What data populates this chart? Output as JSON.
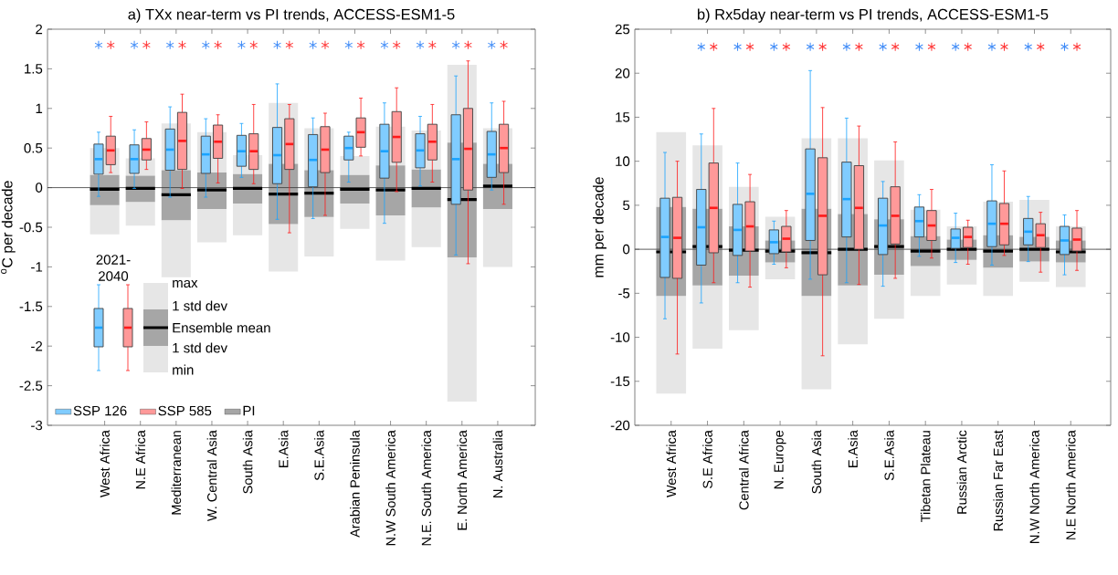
{
  "chart_data": [
    {
      "type": "box",
      "title": "a) TXx near-term vs PI trends, ACCESS-ESM1-5",
      "ylabel": "$^{o}$C per decade",
      "categories": [
        "West Africa",
        "N.E Africa",
        "Mediterranean",
        "W. Central Asia",
        "South Asia",
        "E.Asia",
        "S.E.Asia",
        "Arabian Peninsula",
        "N.W South America",
        "N.E. South America",
        "E. North America",
        "N. Australia"
      ],
      "ylim": [
        -3,
        2
      ],
      "yticks": [
        -3,
        -2.5,
        -2,
        -1.5,
        -1,
        -0.5,
        0,
        0.5,
        1,
        1.5,
        2
      ],
      "legend": "bottom left",
      "ref_lines": [
        {
          "axis": "y",
          "value": 0
        }
      ],
      "annotations": [
        "max",
        "1 std dev",
        "Ensemble mean",
        "1 std dev",
        "min",
        "2021-2040"
      ],
      "series": [
        {
          "name": "PI",
          "color": "#a6a6a6",
          "boxes": [
            {
              "low": -0.59,
              "q1": -0.22,
              "median": -0.02,
              "q3": 0.16,
              "high": 0.5
            },
            {
              "low": -0.48,
              "q1": -0.18,
              "median": -0.01,
              "q3": 0.15,
              "high": 0.37
            },
            {
              "low": -1.13,
              "q1": -0.41,
              "median": -0.09,
              "q3": 0.22,
              "high": 0.81
            },
            {
              "low": -0.69,
              "q1": -0.27,
              "median": -0.03,
              "q3": 0.19,
              "high": 0.7
            },
            {
              "low": -0.6,
              "q1": -0.2,
              "median": -0.01,
              "q3": 0.17,
              "high": 0.41
            },
            {
              "low": -1.06,
              "q1": -0.46,
              "median": -0.08,
              "q3": 0.3,
              "high": 1.07
            },
            {
              "low": -0.87,
              "q1": -0.37,
              "median": -0.07,
              "q3": 0.22,
              "high": 0.75
            },
            {
              "low": -0.52,
              "q1": -0.2,
              "median": -0.02,
              "q3": 0.16,
              "high": 0.4
            },
            {
              "low": -0.92,
              "q1": -0.35,
              "median": -0.03,
              "q3": 0.28,
              "high": 0.77
            },
            {
              "low": -0.75,
              "q1": -0.25,
              "median": -0.01,
              "q3": 0.23,
              "high": 0.72
            },
            {
              "low": -2.7,
              "q1": -0.88,
              "median": -0.15,
              "q3": 0.57,
              "high": 1.55
            },
            {
              "low": -1.0,
              "q1": -0.27,
              "median": 0.02,
              "q3": 0.3,
              "high": 0.75
            }
          ]
        },
        {
          "name": "SSP 126",
          "color": "#80ccff",
          "boxes": [
            {
              "low": -0.11,
              "q1": 0.17,
              "median": 0.36,
              "q3": 0.55,
              "high": 0.7
            },
            {
              "low": -0.01,
              "q1": 0.18,
              "median": 0.36,
              "q3": 0.54,
              "high": 0.73
            },
            {
              "low": -0.12,
              "q1": 0.22,
              "median": 0.48,
              "q3": 0.74,
              "high": 1.02
            },
            {
              "low": -0.12,
              "q1": 0.18,
              "median": 0.42,
              "q3": 0.65,
              "high": 0.87
            },
            {
              "low": 0.13,
              "q1": 0.27,
              "median": 0.46,
              "q3": 0.66,
              "high": 0.81
            },
            {
              "low": -0.4,
              "q1": 0.05,
              "median": 0.41,
              "q3": 0.76,
              "high": 1.31
            },
            {
              "low": -0.39,
              "q1": 0.01,
              "median": 0.35,
              "q3": 0.67,
              "high": 0.88
            },
            {
              "low": 0.07,
              "q1": 0.35,
              "median": 0.5,
              "q3": 0.65,
              "high": 0.7
            },
            {
              "low": -0.45,
              "q1": 0.12,
              "median": 0.46,
              "q3": 0.8,
              "high": 1.07
            },
            {
              "low": 0.02,
              "q1": 0.25,
              "median": 0.47,
              "q3": 0.68,
              "high": 0.9
            },
            {
              "low": -0.85,
              "q1": -0.21,
              "median": 0.36,
              "q3": 0.92,
              "high": 1.41
            },
            {
              "low": -0.03,
              "q1": 0.13,
              "median": 0.42,
              "q3": 0.71,
              "high": 1.07
            }
          ]
        },
        {
          "name": "SSP 585",
          "color": "#ff9999",
          "boxes": [
            {
              "low": 0.19,
              "q1": 0.29,
              "median": 0.47,
              "q3": 0.65,
              "high": 0.9
            },
            {
              "low": 0.23,
              "q1": 0.35,
              "median": 0.48,
              "q3": 0.62,
              "high": 0.83
            },
            {
              "low": -0.01,
              "q1": 0.23,
              "median": 0.59,
              "q3": 0.95,
              "high": 1.18
            },
            {
              "low": 0.06,
              "q1": 0.37,
              "median": 0.58,
              "q3": 0.79,
              "high": 0.92
            },
            {
              "low": 0.05,
              "q1": 0.23,
              "median": 0.46,
              "q3": 0.68,
              "high": 1.05
            },
            {
              "low": -0.57,
              "q1": 0.23,
              "median": 0.55,
              "q3": 0.87,
              "high": 1.05
            },
            {
              "low": -0.35,
              "q1": 0.19,
              "median": 0.48,
              "q3": 0.77,
              "high": 0.94
            },
            {
              "low": 0.4,
              "q1": 0.51,
              "median": 0.7,
              "q3": 0.88,
              "high": 1.13
            },
            {
              "low": -0.05,
              "q1": 0.32,
              "median": 0.64,
              "q3": 0.96,
              "high": 1.26
            },
            {
              "low": 0.07,
              "q1": 0.35,
              "median": 0.58,
              "q3": 0.8,
              "high": 1.05
            },
            {
              "low": -0.96,
              "q1": -0.03,
              "median": 0.49,
              "q3": 1.0,
              "high": 1.6
            },
            {
              "low": -0.21,
              "q1": 0.19,
              "median": 0.5,
              "q3": 0.8,
              "high": 1.09
            }
          ]
        },
        {
          "type": "scatter",
          "color": "#3d8af7",
          "marker": "cross",
          "values": [
            1.8,
            1.8,
            1.8,
            1.8,
            1.8,
            1.8,
            1.8,
            1.8,
            1.8,
            1.8,
            1.8,
            1.8
          ]
        },
        {
          "type": "scatter",
          "color": "#ff3333",
          "marker": "cross",
          "values": [
            1.8,
            1.8,
            1.8,
            1.8,
            1.8,
            1.8,
            1.8,
            1.8,
            1.8,
            1.8,
            1.8,
            1.8
          ]
        }
      ]
    },
    {
      "type": "box",
      "title": "b) Rx5day near-term vs PI trends, ACCESS-ESM1-5",
      "ylabel": "mm per decade",
      "categories": [
        "West Africa",
        "S.E Africa",
        "Central Africa",
        "N. Europe",
        "South Asia",
        "E.Asia",
        "S.E.Asia",
        "Tibetan Plateau",
        "Russian Arctic",
        "Russian Far East",
        "N.W North America",
        "N.E North America"
      ],
      "ylim": [
        -20,
        25
      ],
      "yticks": [
        -20,
        -15,
        -10,
        -5,
        0,
        5,
        10,
        15,
        20,
        25
      ],
      "ref_lines": [
        {
          "axis": "y",
          "value": 0
        }
      ],
      "series": [
        {
          "color": "#a6a6a6",
          "boxes": [
            {
              "low": -16.4,
              "q1": -5.3,
              "median": -0.3,
              "q3": 4.8,
              "high": 13.3
            },
            {
              "low": -11.3,
              "q1": -4.1,
              "median": 0.3,
              "q3": 4.6,
              "high": 11.8
            },
            {
              "low": -9.2,
              "q1": -3.0,
              "median": -0.1,
              "q3": 2.6,
              "high": 7.1
            },
            {
              "low": -3.4,
              "q1": -1.5,
              "median": -0.2,
              "q3": 1.0,
              "high": 3.7
            },
            {
              "low": -15.9,
              "q1": -5.3,
              "median": -0.4,
              "q3": 4.6,
              "high": 12.6
            },
            {
              "low": -10.8,
              "q1": -4.1,
              "median": 0.0,
              "q3": 4.0,
              "high": 12.6
            },
            {
              "low": -7.9,
              "q1": -2.9,
              "median": 0.3,
              "q3": 3.4,
              "high": 10.1
            },
            {
              "low": -5.3,
              "q1": -1.9,
              "median": -0.2,
              "q3": 1.5,
              "high": 4.5
            },
            {
              "low": -4.0,
              "q1": -1.2,
              "median": 0.0,
              "q3": 1.1,
              "high": 2.6
            },
            {
              "low": -5.3,
              "q1": -2.1,
              "median": -0.2,
              "q3": 1.6,
              "high": 5.4
            },
            {
              "low": -3.7,
              "q1": -1.4,
              "median": 0.0,
              "q3": 1.4,
              "high": 5.6
            },
            {
              "low": -4.3,
              "q1": -1.5,
              "median": -0.3,
              "q3": 1.0,
              "high": 2.6
            }
          ]
        },
        {
          "color": "#80ccff",
          "boxes": [
            {
              "low": -7.9,
              "q1": -3.2,
              "median": 1.4,
              "q3": 5.8,
              "high": 11.0
            },
            {
              "low": -6.1,
              "q1": -1.8,
              "median": 2.5,
              "q3": 6.8,
              "high": 13.1
            },
            {
              "low": -3.8,
              "q1": -0.7,
              "median": 2.2,
              "q3": 5.1,
              "high": 9.8
            },
            {
              "low": -1.7,
              "q1": -0.5,
              "median": 0.8,
              "q3": 2.2,
              "high": 3.2
            },
            {
              "low": -3.4,
              "q1": 1.0,
              "median": 6.3,
              "q3": 11.4,
              "high": 20.3
            },
            {
              "low": -3.8,
              "q1": 1.4,
              "median": 5.7,
              "q3": 9.9,
              "high": 14.9
            },
            {
              "low": -4.2,
              "q1": -0.6,
              "median": 2.7,
              "q3": 5.8,
              "high": 7.7
            },
            {
              "low": -0.8,
              "q1": 1.4,
              "median": 3.2,
              "q3": 4.8,
              "high": 6.2
            },
            {
              "low": -1.5,
              "q1": 0.1,
              "median": 1.3,
              "q3": 2.3,
              "high": 4.1
            },
            {
              "low": -1.8,
              "q1": 0.3,
              "median": 2.9,
              "q3": 5.5,
              "high": 9.6
            },
            {
              "low": -1.4,
              "q1": 0.5,
              "median": 2.0,
              "q3": 3.5,
              "high": 6.0
            },
            {
              "low": -2.9,
              "q1": -0.6,
              "median": 1.0,
              "q3": 2.6,
              "high": 3.9
            }
          ]
        },
        {
          "color": "#ff9999",
          "boxes": [
            {
              "low": -11.9,
              "q1": -3.3,
              "median": 1.3,
              "q3": 5.9,
              "high": 10.0
            },
            {
              "low": -3.8,
              "q1": -0.4,
              "median": 4.7,
              "q3": 9.8,
              "high": 16.0
            },
            {
              "low": -4.3,
              "q1": -0.2,
              "median": 2.6,
              "q3": 5.4,
              "high": 8.5
            },
            {
              "low": -2.1,
              "q1": -0.3,
              "median": 1.2,
              "q3": 2.6,
              "high": 4.4
            },
            {
              "low": -12.1,
              "q1": -2.9,
              "median": 3.8,
              "q3": 10.4,
              "high": 16.1
            },
            {
              "low": -4.0,
              "q1": 0.0,
              "median": 4.7,
              "q3": 9.5,
              "high": 14.0
            },
            {
              "low": -3.3,
              "q1": 0.6,
              "median": 3.8,
              "q3": 7.1,
              "high": 12.2
            },
            {
              "low": -1.0,
              "q1": 1.0,
              "median": 2.7,
              "q3": 4.4,
              "high": 6.8
            },
            {
              "low": -1.7,
              "q1": 0.2,
              "median": 1.4,
              "q3": 2.5,
              "high": 3.3
            },
            {
              "low": -0.7,
              "q1": 0.5,
              "median": 2.9,
              "q3": 5.2,
              "high": 8.9
            },
            {
              "low": -2.6,
              "q1": 0.2,
              "median": 1.6,
              "q3": 2.9,
              "high": 4.2
            },
            {
              "low": -2.4,
              "q1": -0.2,
              "median": 1.1,
              "q3": 2.4,
              "high": 4.4
            }
          ]
        },
        {
          "type": "scatter",
          "color": "#3d8af7",
          "marker": "cross",
          "values": [
            null,
            23,
            23,
            23,
            23,
            23,
            23,
            23,
            23,
            23,
            23,
            23
          ]
        },
        {
          "type": "scatter",
          "color": "#ff3333",
          "marker": "cross",
          "values": [
            null,
            23,
            23,
            23,
            23,
            23,
            23,
            23,
            23,
            23,
            23,
            23
          ]
        }
      ]
    }
  ]
}
